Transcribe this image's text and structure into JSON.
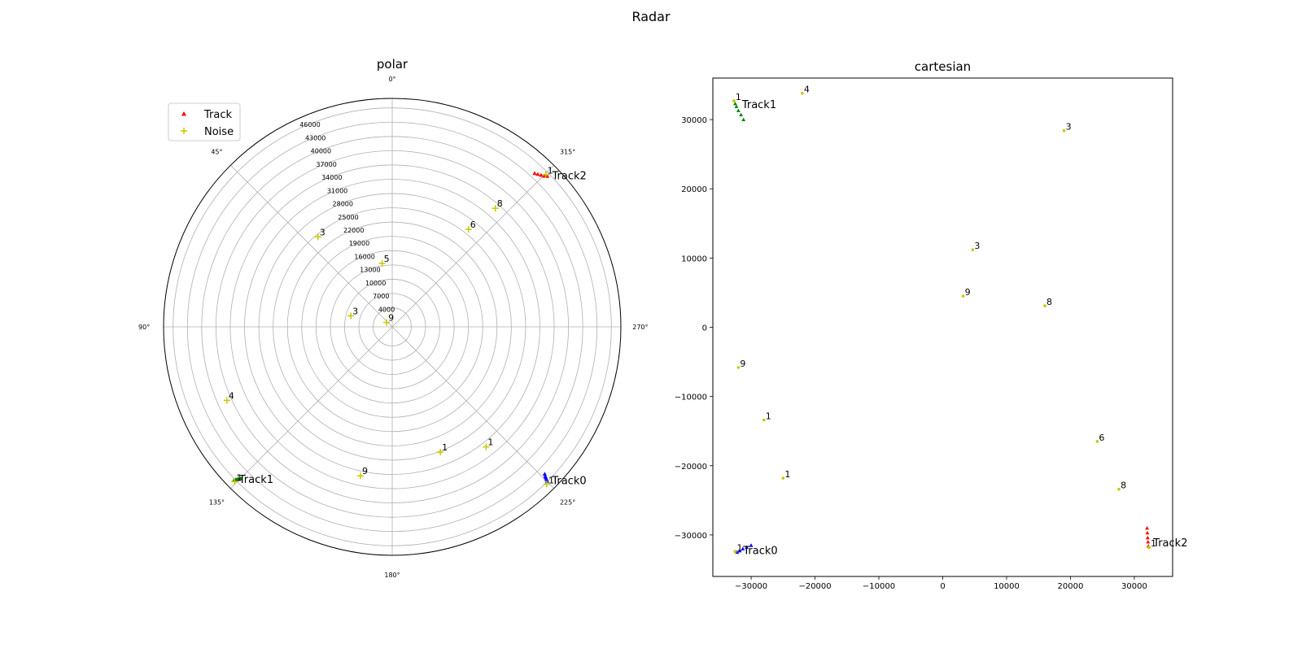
{
  "figure": {
    "title": "Radar"
  },
  "chart_data": [
    {
      "type": "scatter",
      "projection": "polar",
      "title": "polar",
      "theta_zero_location": "top",
      "theta_direction": "counterclockwise",
      "theta_ticks": [
        "0°",
        "45°",
        "90°",
        "135°",
        "180°",
        "225°",
        "270°",
        "315°"
      ],
      "r_ticks": [
        4000,
        7000,
        10000,
        13000,
        16000,
        19000,
        22000,
        25000,
        28000,
        31000,
        34000,
        37000,
        40000,
        43000,
        46000
      ],
      "r_max": 48000,
      "grid": true,
      "legend": {
        "placement": "upper-left",
        "entries": [
          {
            "label": "Track",
            "marker": "triangle",
            "color": "#ff0000"
          },
          {
            "label": "Noise",
            "marker": "plus",
            "color": "#c8c800"
          }
        ]
      },
      "tracks": [
        {
          "label": "Track0",
          "color": "#0000ff",
          "points": [
            [
              226.0,
              44500
            ],
            [
              225.7,
              44900
            ],
            [
              225.5,
              45200
            ],
            [
              225.3,
              45550
            ],
            [
              225.1,
              45900
            ]
          ]
        },
        {
          "label": "Track1",
          "color": "#008000",
          "points": [
            [
              135.0,
              45000
            ],
            [
              134.8,
              45300
            ],
            [
              134.5,
              45600
            ],
            [
              134.3,
              45900
            ],
            [
              134.1,
              46200
            ]
          ]
        },
        {
          "label": "Track2",
          "color": "#ff0000",
          "points": [
            [
              317.2,
              44000
            ],
            [
              316.4,
              44300
            ],
            [
              315.6,
              44650
            ],
            [
              314.8,
              45000
            ],
            [
              314.2,
              45400
            ]
          ]
        }
      ],
      "track_point_labels": [
        {
          "text": "1",
          "theta": 224.5,
          "r": 46300
        },
        {
          "text": "1",
          "theta": 134.5,
          "r": 46400
        },
        {
          "text": "1",
          "theta": 314.8,
          "r": 45400
        }
      ],
      "noise": [
        {
          "label": "9",
          "theta": 52.0,
          "r": 1500
        },
        {
          "label": "3",
          "theta": 75.0,
          "r": 9000
        },
        {
          "label": "5",
          "theta": 9.0,
          "r": 13500
        },
        {
          "label": "3",
          "theta": 39.5,
          "r": 24500
        },
        {
          "label": "4",
          "theta": 114.0,
          "r": 38000
        },
        {
          "label": "9",
          "theta": 168.0,
          "r": 32000
        },
        {
          "label": "1",
          "theta": 201.0,
          "r": 28200
        },
        {
          "label": "1",
          "theta": 218.0,
          "r": 32000
        },
        {
          "label": "6",
          "theta": 322.0,
          "r": 26000
        },
        {
          "label": "8",
          "theta": 319.0,
          "r": 33000
        }
      ]
    },
    {
      "type": "scatter",
      "title": "cartesian",
      "xlim": [
        -36000,
        36000
      ],
      "ylim": [
        -36000,
        36000
      ],
      "xticks": [
        -30000,
        -20000,
        -10000,
        0,
        10000,
        20000,
        30000
      ],
      "yticks": [
        -30000,
        -20000,
        -10000,
        0,
        10000,
        20000,
        30000
      ],
      "tick_labels": [
        "−30000",
        "−20000",
        "−10000",
        "0",
        "10000",
        "20000",
        "30000"
      ],
      "grid": false,
      "tracks": [
        {
          "label": "Track0",
          "color": "#0000ff",
          "points": [
            [
              -30000,
              -31500
            ],
            [
              -30700,
              -31800
            ],
            [
              -31300,
              -32000
            ],
            [
              -31800,
              -32300
            ],
            [
              -32200,
              -32500
            ]
          ]
        },
        {
          "label": "Track1",
          "color": "#008000",
          "points": [
            [
              -31200,
              30000
            ],
            [
              -31600,
              30700
            ],
            [
              -32000,
              31300
            ],
            [
              -32300,
              31900
            ],
            [
              -32500,
              32300
            ]
          ]
        },
        {
          "label": "Track2",
          "color": "#ff0000",
          "points": [
            [
              32000,
              -29000
            ],
            [
              32050,
              -29700
            ],
            [
              32100,
              -30400
            ],
            [
              32150,
              -31000
            ],
            [
              32200,
              -31600
            ]
          ]
        }
      ],
      "track_point_labels": [
        {
          "text": "1",
          "x": -32500,
          "y": -32400
        },
        {
          "text": "1",
          "x": -32700,
          "y": 32700
        },
        {
          "text": "1",
          "x": 32300,
          "y": -31800
        }
      ],
      "noise": [
        {
          "label": "4",
          "x": -22000,
          "y": 33800
        },
        {
          "label": "3",
          "x": 19000,
          "y": 28400
        },
        {
          "label": "3",
          "x": 4700,
          "y": 11200
        },
        {
          "label": "9",
          "x": 3200,
          "y": 4500
        },
        {
          "label": "8",
          "x": 16000,
          "y": 3100
        },
        {
          "label": "9",
          "x": -32000,
          "y": -5800
        },
        {
          "label": "1",
          "x": -28000,
          "y": -13400
        },
        {
          "label": "1",
          "x": -25000,
          "y": -21800
        },
        {
          "label": "6",
          "x": 24200,
          "y": -16500
        },
        {
          "label": "8",
          "x": 27600,
          "y": -23400
        }
      ]
    }
  ]
}
